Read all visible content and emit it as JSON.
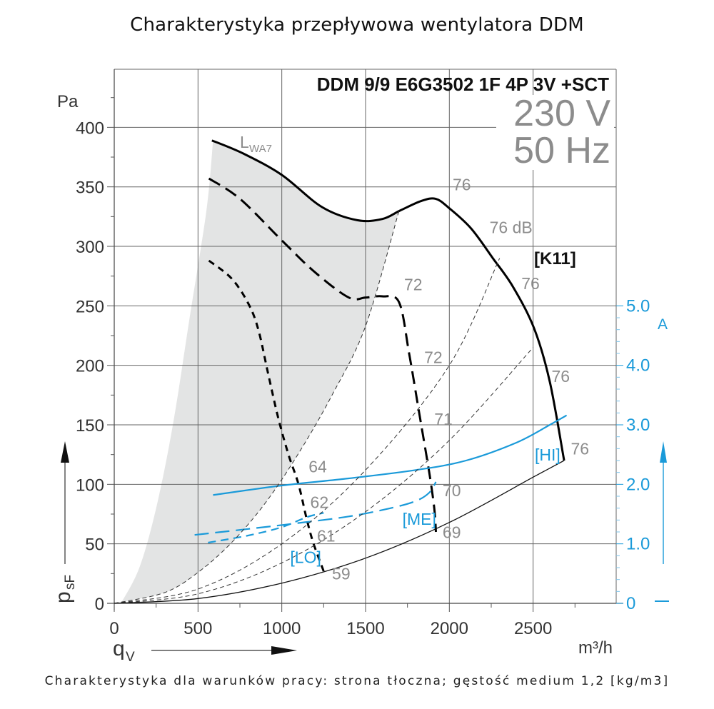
{
  "page": {
    "title": "Charakterystyka przepływowa wentylatora DDM",
    "footer": "Charakterystyka dla warunków pracy: strona tłoczna; gęstość medium 1,2 [kg/m3]"
  },
  "chart_data": {
    "type": "line",
    "title": "Charakterystyka przepływowa wentylatora DDM",
    "model": "DDM 9/9 E6G3502 1F 4P 3V +SCT",
    "voltage": "230 V",
    "frequency": "50 Hz",
    "xlabel": "q",
    "xlabel_sub": "V",
    "xunit": "m³/h",
    "ylabel": "p",
    "ylabel_sub": "sF",
    "yunit": "Pa",
    "y2unit": "A",
    "xlim": [
      0,
      3000
    ],
    "ylim": [
      0,
      450
    ],
    "y2lim": [
      0,
      9.0
    ],
    "grid": true,
    "x_ticks": [
      0,
      500,
      1000,
      1500,
      2000,
      2500
    ],
    "x_tick_labels": [
      "0",
      "500",
      "1000",
      "1500",
      "2000",
      "2500"
    ],
    "y_ticks": [
      0,
      50,
      100,
      150,
      200,
      250,
      300,
      350,
      400
    ],
    "y_tick_labels": [
      "0",
      "50",
      "100",
      "150",
      "200",
      "250",
      "300",
      "350",
      "400"
    ],
    "y2_ticks": [
      0,
      1.0,
      2.0,
      3.0,
      4.0,
      5.0
    ],
    "y2_tick_labels": [
      "0",
      "1.0",
      "2.0",
      "3.0",
      "4.0",
      "5.0"
    ],
    "noise_region_label": "L",
    "noise_region_label_sub": "WA7",
    "k_label": "[K11]",
    "colors": {
      "pressure": "#000000",
      "current": "#1a9ad9",
      "noise_region": "#e3e4e4",
      "grid": "#555555",
      "gray_text": "#8c8c8c"
    },
    "series": [
      {
        "name": "HI pressure",
        "axis": "left",
        "style": "solid",
        "x": [
          583,
          770,
          1000,
          1240,
          1450,
          1600,
          1705,
          1830,
          1918,
          2000,
          2130,
          2260,
          2380,
          2506,
          2600,
          2685
        ],
        "y": [
          389,
          378,
          360,
          333,
          322,
          323,
          330,
          338,
          340,
          332,
          315,
          290,
          266,
          231,
          186,
          120
        ]
      },
      {
        "name": "ME pressure",
        "axis": "left",
        "style": "dashed",
        "x": [
          565,
          750,
          1000,
          1200,
          1400,
          1500,
          1600,
          1700,
          1760,
          1820,
          1880,
          1910,
          1920
        ],
        "y": [
          357,
          340,
          305,
          278,
          257,
          257,
          258,
          253,
          210,
          160,
          110,
          80,
          60
        ]
      },
      {
        "name": "LO pressure",
        "axis": "left",
        "style": "short-dashed",
        "x": [
          565,
          700,
          800,
          860,
          920,
          980,
          1040,
          1100,
          1150,
          1190,
          1250
        ],
        "y": [
          288,
          273,
          252,
          230,
          192,
          155,
          125,
          100,
          70,
          50,
          27
        ]
      },
      {
        "name": "HI current",
        "axis": "right",
        "unit": "A",
        "style": "solid",
        "label": "[HI]",
        "x": [
          590,
          1000,
          1400,
          1800,
          2100,
          2400,
          2600,
          2700
        ],
        "y": [
          1.82,
          1.98,
          2.1,
          2.24,
          2.4,
          2.7,
          3.0,
          3.16
        ]
      },
      {
        "name": "ME current",
        "axis": "right",
        "unit": "A",
        "style": "dashed",
        "label": "[ME]",
        "x": [
          480,
          800,
          1100,
          1400,
          1650,
          1800,
          1880,
          1920
        ],
        "y": [
          1.15,
          1.25,
          1.35,
          1.46,
          1.6,
          1.72,
          1.86,
          2.04
        ]
      },
      {
        "name": "LO current",
        "axis": "right",
        "unit": "A",
        "style": "short-dashed",
        "label": "[LO]",
        "x": [
          560,
          800,
          1000,
          1150,
          1250
        ],
        "y": [
          1.02,
          1.14,
          1.28,
          1.45,
          1.52
        ]
      },
      {
        "name": "System curve 1 (noise region edge)",
        "axis": "left",
        "style": "thin-dashed",
        "x": [
          0,
          300,
          500,
          700,
          900,
          1100,
          1300,
          1500,
          1700
        ],
        "y": [
          0,
          9,
          26,
          51,
          84,
          126,
          175,
          233,
          330
        ]
      },
      {
        "name": "System curve 2",
        "axis": "left",
        "style": "thin-dashed",
        "x": [
          0,
          500,
          1000,
          1500,
          2000,
          2300
        ],
        "y": [
          0,
          12,
          50,
          112,
          200,
          290
        ]
      },
      {
        "name": "System curve 3",
        "axis": "left",
        "style": "thin-dashed",
        "x": [
          0,
          500,
          1000,
          1500,
          2000,
          2500
        ],
        "y": [
          0,
          8,
          34,
          77,
          137,
          215
        ]
      },
      {
        "name": "System curve 4 (min)",
        "axis": "left",
        "style": "thin-solid",
        "x": [
          0,
          500,
          1000,
          1500,
          2000,
          2500,
          2685
        ],
        "y": [
          0,
          4,
          17,
          38,
          68,
          106,
          120
        ]
      },
      {
        "name": "Noise region left edge",
        "axis": "left",
        "style": "fill-edge",
        "x": [
          40,
          150,
          250,
          350,
          450,
          550,
          590
        ],
        "y": [
          0,
          30,
          80,
          150,
          240,
          330,
          389
        ]
      }
    ],
    "annotations": [
      {
        "text": "76",
        "x": 2020,
        "y": 347
      },
      {
        "text": "76 dB",
        "x": 2240,
        "y": 311
      },
      {
        "text": "76",
        "x": 2430,
        "y": 264
      },
      {
        "text": "76",
        "x": 2610,
        "y": 186
      },
      {
        "text": "76",
        "x": 2725,
        "y": 125
      },
      {
        "text": "72",
        "x": 1730,
        "y": 263
      },
      {
        "text": "72",
        "x": 1850,
        "y": 202
      },
      {
        "text": "71",
        "x": 1910,
        "y": 150
      },
      {
        "text": "70",
        "x": 1960,
        "y": 90
      },
      {
        "text": "69",
        "x": 1960,
        "y": 55
      },
      {
        "text": "64",
        "x": 1160,
        "y": 110
      },
      {
        "text": "62",
        "x": 1170,
        "y": 80
      },
      {
        "text": "61",
        "x": 1210,
        "y": 52
      },
      {
        "text": "59",
        "x": 1300,
        "y": 20
      }
    ],
    "current_labels": [
      {
        "text": "[HI]",
        "x": 2510,
        "y": 2.4
      },
      {
        "text": "[ME]",
        "x": 1720,
        "y": 1.32
      },
      {
        "text": "[LO]",
        "x": 1050,
        "y": 0.68
      }
    ]
  }
}
